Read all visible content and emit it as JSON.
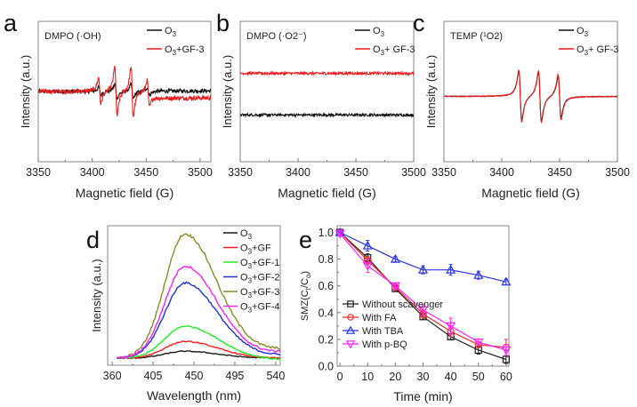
{
  "chart_data": [
    {
      "id": "a",
      "type": "line",
      "panel_label": "a",
      "annotation": "DMPO (·OH)",
      "xlabel": "Magnetic field (G)",
      "ylabel": "Intensity (a.u.)",
      "xlim": [
        3350,
        3510
      ],
      "xticks": [
        3350,
        3400,
        3450,
        3500
      ],
      "grid": false,
      "legend_position": "top-right",
      "series": [
        {
          "name": "O3",
          "label_main": "O",
          "label_sub": "3",
          "label_rest": "",
          "color": "#111111",
          "baseline": 0,
          "noise": 0.06,
          "tail_offset": 0.02,
          "peaks": [
            {
              "x": 3407,
              "amp": 0.25
            },
            {
              "x": 3422,
              "amp": 0.45
            },
            {
              "x": 3437,
              "amp": 0.45
            },
            {
              "x": 3452,
              "amp": 0.25
            }
          ]
        },
        {
          "name": "O3+GF-3",
          "label_main": "O",
          "label_sub": "3",
          "label_rest": "+GF-3",
          "color": "#ee1c1c",
          "baseline": 0,
          "noise": 0.07,
          "tail_offset": -0.2,
          "peaks": [
            {
              "x": 3407,
              "amp": 0.85
            },
            {
              "x": 3422,
              "amp": 1.6
            },
            {
              "x": 3437,
              "amp": 1.6
            },
            {
              "x": 3452,
              "amp": 0.85
            }
          ]
        }
      ],
      "ylim": [
        -2.2,
        2.2
      ]
    },
    {
      "id": "b",
      "type": "line",
      "panel_label": "b",
      "annotation": "DMPO (·O2⁻)",
      "xlabel": "Magnetic field (G)",
      "ylabel": "Intensity (a.u.)",
      "xlim": [
        3350,
        3500
      ],
      "xticks": [
        3350,
        3400,
        3450,
        3500
      ],
      "grid": false,
      "legend_position": "top-right",
      "series": [
        {
          "name": "O3",
          "label_main": "O",
          "label_sub": "3",
          "label_rest": "",
          "color": "#111111",
          "baseline": -1.0,
          "noise": 0.05,
          "tail_offset": 0,
          "peaks": []
        },
        {
          "name": "O3+ GF-3",
          "label_main": "O",
          "label_sub": "3",
          "label_rest": "+ GF-3",
          "color": "#ee1c1c",
          "baseline": 0.6,
          "noise": 0.05,
          "tail_offset": 0,
          "peaks": []
        }
      ],
      "ylim": [
        -2.8,
        2.6
      ]
    },
    {
      "id": "c",
      "type": "line",
      "panel_label": "c",
      "annotation": "TEMP (¹O2)",
      "xlabel": "Magnetic field (G)",
      "ylabel": "Intensity (a.u.)",
      "xlim": [
        3350,
        3500
      ],
      "xticks": [
        3350,
        3400,
        3450,
        3500
      ],
      "grid": false,
      "legend_position": "top-right",
      "series": [
        {
          "name": "O3",
          "label_main": "O",
          "label_sub": "3",
          "label_rest": "",
          "color": "#111111",
          "baseline": 0,
          "noise": 0.01,
          "tail_offset": 0,
          "peaks": [
            {
              "x": 3416,
              "amp": 1.55
            },
            {
              "x": 3433,
              "amp": 1.55
            },
            {
              "x": 3450,
              "amp": 1.3
            }
          ]
        },
        {
          "name": "O3+ GF-3",
          "label_main": "O",
          "label_sub": "3",
          "label_rest": "+ GF-3",
          "color": "#ee1c1c",
          "baseline": 0,
          "noise": 0.012,
          "tail_offset": 0,
          "peaks": [
            {
              "x": 3416,
              "amp": 1.65
            },
            {
              "x": 3433,
              "amp": 1.65
            },
            {
              "x": 3450,
              "amp": 1.45
            }
          ]
        }
      ],
      "ylim": [
        -2.0,
        2.3
      ]
    },
    {
      "id": "d",
      "type": "line",
      "panel_label": "d",
      "xlabel": "Wavelength (nm)",
      "ylabel": "Intensity (a.u.)",
      "xlim": [
        355,
        545
      ],
      "xticks": [
        360,
        405,
        450,
        495,
        540
      ],
      "grid": false,
      "legend_position": "top-right",
      "peak_wavelength": 440,
      "series": [
        {
          "name": "O3",
          "label_main": "O",
          "label_sub": "3",
          "label_rest": "",
          "color": "#1a1a1a",
          "peak": 0.05,
          "tail": 0.0
        },
        {
          "name": "O3+GF",
          "label_main": "O",
          "label_sub": "3",
          "label_rest": "+GF",
          "color": "#ff2020",
          "peak": 0.12,
          "tail": 0.0
        },
        {
          "name": "O3+GF-1",
          "label_main": "O",
          "label_sub": "3",
          "label_rest": "+GF-1",
          "color": "#22ee22",
          "peak": 0.23,
          "tail": -0.01
        },
        {
          "name": "O3+GF-2",
          "label_main": "O",
          "label_sub": "3",
          "label_rest": "+GF-2",
          "color": "#2233dd",
          "peak": 0.54,
          "tail": 0.02
        },
        {
          "name": "O3+GF-3",
          "label_main": "O",
          "label_sub": "3",
          "label_rest": "+GF-3",
          "color": "#8b8b2a",
          "peak": 0.89,
          "tail": 0.06
        },
        {
          "name": "O3+GF-4",
          "label_main": "O",
          "label_sub": "3",
          "label_rest": "+GF-4",
          "color": "#ff22ff",
          "peak": 0.66,
          "tail": 0.04
        }
      ],
      "ylim": [
        0,
        1.0
      ]
    },
    {
      "id": "e",
      "type": "line",
      "panel_label": "e",
      "xlabel": "Time (min)",
      "ylabel": "SMZ(Ct/Co)",
      "ylabel_main": "SMZ(C",
      "ylabel_sub1": "t",
      "ylabel_mid": "/C",
      "ylabel_sub2": "o",
      "ylabel_end": ")",
      "xlim": [
        -1,
        61
      ],
      "ylim": [
        0,
        1.05
      ],
      "xticks": [
        0,
        10,
        20,
        30,
        40,
        50,
        60
      ],
      "yticks": [
        "0.0",
        "0.2",
        "0.4",
        "0.6",
        "0.8",
        "1.0"
      ],
      "grid": false,
      "legend_position": "bottom-left",
      "x": [
        0,
        10,
        20,
        30,
        40,
        50,
        60
      ],
      "series": [
        {
          "name": "Without scavenger",
          "color": "#222222",
          "marker": "square",
          "values": [
            1.0,
            0.81,
            0.58,
            0.37,
            0.22,
            0.12,
            0.05
          ],
          "errors": [
            0.01,
            0.03,
            0.02,
            0.02,
            0.02,
            0.03,
            0.03
          ]
        },
        {
          "name": "With FA",
          "color": "#ff2a2a",
          "marker": "circle",
          "values": [
            1.0,
            0.79,
            0.59,
            0.39,
            0.26,
            0.16,
            0.14
          ],
          "errors": [
            0.01,
            0.03,
            0.02,
            0.03,
            0.04,
            0.02,
            0.06
          ]
        },
        {
          "name": "With TBA",
          "color": "#2a35ee",
          "marker": "triangle-up",
          "values": [
            1.0,
            0.9,
            0.8,
            0.72,
            0.72,
            0.68,
            0.63
          ],
          "errors": [
            0.01,
            0.04,
            0.02,
            0.03,
            0.04,
            0.03,
            0.02
          ]
        },
        {
          "name": "With p-BQ",
          "color": "#ff22ff",
          "marker": "triangle-down",
          "values": [
            0.99,
            0.75,
            0.6,
            0.42,
            0.3,
            0.18,
            0.12
          ],
          "errors": [
            0.01,
            0.05,
            0.02,
            0.04,
            0.06,
            0.02,
            0.04
          ]
        }
      ]
    }
  ]
}
